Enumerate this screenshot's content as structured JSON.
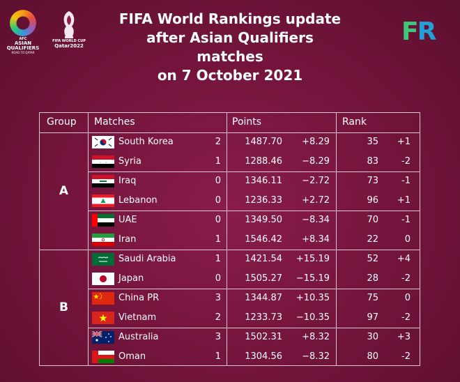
{
  "header": {
    "logo_left": {
      "line1": "AFC",
      "line2": "ASIAN",
      "line3": "QUALIFIERS",
      "line4": "ROAD TO QATAR"
    },
    "logo_center": {
      "line1": "FIFA WORLD CUP",
      "line2": "Qatar2022"
    },
    "title_line1": "FIFA World Rankings update",
    "title_line2": "after Asian Qualifiers matches",
    "title_line3": "on 7 October 2021",
    "brand_f": "F",
    "brand_r": "R"
  },
  "table": {
    "headers": {
      "group": "Group",
      "matches": "Matches",
      "points": "Points",
      "rank": "Rank"
    },
    "groups": [
      {
        "name": "A"
      },
      {
        "name": "B"
      }
    ],
    "rows": [
      {
        "team": "South Korea",
        "flag": "korea-flag",
        "score": "2",
        "points": "1487.70",
        "points_change": "+8.29",
        "rank": "35",
        "rank_change": "+1"
      },
      {
        "team": "Syria",
        "flag": "syria-flag",
        "score": "1",
        "points": "1288.46",
        "points_change": "−8.29",
        "rank": "83",
        "rank_change": "-2"
      },
      {
        "team": "Iraq",
        "flag": "iraq-flag",
        "score": "0",
        "points": "1346.11",
        "points_change": "−2.72",
        "rank": "73",
        "rank_change": "-1"
      },
      {
        "team": "Lebanon",
        "flag": "lebanon-flag",
        "score": "0",
        "points": "1236.33",
        "points_change": "+2.72",
        "rank": "96",
        "rank_change": "+1"
      },
      {
        "team": "UAE",
        "flag": "uae-flag",
        "score": "0",
        "points": "1349.50",
        "points_change": "−8.34",
        "rank": "70",
        "rank_change": "-1"
      },
      {
        "team": "Iran",
        "flag": "iran-flag",
        "score": "1",
        "points": "1546.42",
        "points_change": "+8.34",
        "rank": "22",
        "rank_change": "0"
      },
      {
        "team": "Saudi Arabia",
        "flag": "saudi-flag",
        "score": "1",
        "points": "1421.54",
        "points_change": "+15.19",
        "rank": "52",
        "rank_change": "+4"
      },
      {
        "team": "Japan",
        "flag": "japan-flag",
        "score": "0",
        "points": "1505.27",
        "points_change": "−15.19",
        "rank": "28",
        "rank_change": "-2"
      },
      {
        "team": "China PR",
        "flag": "china-flag",
        "score": "3",
        "points": "1344.87",
        "points_change": "+10.35",
        "rank": "75",
        "rank_change": "0"
      },
      {
        "team": "Vietnam",
        "flag": "vietnam-flag",
        "score": "2",
        "points": "1233.73",
        "points_change": "−10.35",
        "rank": "97",
        "rank_change": "-2"
      },
      {
        "team": "Australia",
        "flag": "australia-flag",
        "score": "3",
        "points": "1502.31",
        "points_change": "+8.32",
        "rank": "30",
        "rank_change": "+3"
      },
      {
        "team": "Oman",
        "flag": "oman-flag",
        "score": "1",
        "points": "1304.56",
        "points_change": "−8.32",
        "rank": "80",
        "rank_change": "-2"
      }
    ]
  },
  "colors": {
    "background": "#7a1740",
    "table_border": "#e8c6d4",
    "brand_f": "#3cc878",
    "brand_r": "#23a0d8"
  }
}
